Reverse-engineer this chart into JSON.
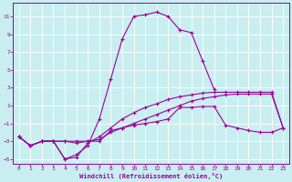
{
  "xlabel": "Windchill (Refroidissement éolien,°C)",
  "bg_color": "#c8eef0",
  "line_color": "#990099",
  "grid_color": "#ffffff",
  "xlim": [
    -0.5,
    23.5
  ],
  "ylim": [
    -5.5,
    12.5
  ],
  "yticks": [
    -5,
    -3,
    -1,
    1,
    3,
    5,
    7,
    9,
    11
  ],
  "xticks": [
    0,
    1,
    2,
    3,
    4,
    5,
    6,
    7,
    8,
    9,
    10,
    11,
    12,
    13,
    14,
    15,
    16,
    17,
    18,
    19,
    20,
    21,
    22,
    23
  ],
  "series": [
    {
      "x": [
        0,
        1,
        2,
        3,
        4,
        5,
        6,
        7,
        8,
        9,
        10,
        11,
        12,
        13,
        14,
        15,
        16,
        17
      ],
      "y": [
        -2.5,
        -3.5,
        -3.0,
        -3.0,
        -5.0,
        -4.5,
        -3.5,
        -0.5,
        4.0,
        8.5,
        11.0,
        11.2,
        11.5,
        11.0,
        9.5,
        9.2,
        6.0,
        2.8
      ]
    },
    {
      "x": [
        0,
        1,
        2,
        3,
        4,
        5,
        6,
        7,
        8,
        9,
        10,
        11,
        12,
        13,
        14,
        15,
        16,
        17,
        18,
        19,
        20,
        21,
        22,
        23
      ],
      "y": [
        -2.5,
        -3.5,
        -3.0,
        -3.0,
        -3.0,
        -3.0,
        -3.0,
        -3.0,
        -1.8,
        -1.5,
        -1.2,
        -1.0,
        -0.8,
        -0.5,
        0.8,
        0.8,
        0.9,
        0.9,
        -1.2,
        -1.5,
        -1.8,
        -2.0,
        -2.0,
        -1.5
      ]
    },
    {
      "x": [
        0,
        1,
        2,
        3,
        4,
        5,
        6,
        7,
        8,
        9,
        10,
        11,
        12,
        13,
        14,
        15,
        16,
        17,
        18,
        19,
        20,
        21,
        22,
        23
      ],
      "y": [
        -2.5,
        -3.5,
        -3.0,
        -3.0,
        -3.0,
        -3.2,
        -3.0,
        -2.8,
        -2.0,
        -1.5,
        -1.0,
        -0.5,
        0.0,
        0.5,
        1.0,
        1.5,
        1.8,
        2.0,
        2.2,
        2.3,
        2.3,
        2.3,
        2.3,
        -1.5
      ]
    },
    {
      "x": [
        0,
        1,
        2,
        3,
        4,
        5,
        6,
        7,
        8,
        9,
        10,
        11,
        12,
        13,
        14,
        15,
        16,
        17,
        18,
        19,
        20,
        21,
        22,
        23
      ],
      "y": [
        -2.5,
        -3.5,
        -3.0,
        -3.0,
        -5.0,
        -4.8,
        -3.2,
        -2.5,
        -1.5,
        -0.5,
        0.2,
        0.8,
        1.2,
        1.7,
        2.0,
        2.2,
        2.4,
        2.5,
        2.5,
        2.5,
        2.5,
        2.5,
        2.5,
        -1.5
      ]
    }
  ]
}
